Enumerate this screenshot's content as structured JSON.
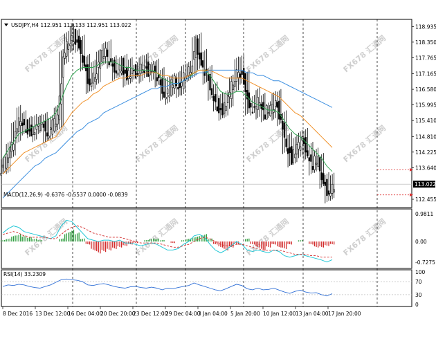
{
  "chart_data": [
    {
      "type": "candlestick",
      "title": "USDJPY,H4 112.951 113.133 112.951 113.022",
      "symbol": "USDJPY",
      "timeframe": "H4",
      "ohlc": {
        "open": 112.951,
        "high": 113.133,
        "low": 112.951,
        "close": 113.022
      },
      "current_price_tag": "113.022",
      "y_ticks": [
        "118.935",
        "118.350",
        "117.765",
        "117.165",
        "116.580",
        "115.995",
        "115.410",
        "114.810",
        "114.225",
        "113.640",
        "113.022",
        "112.455"
      ],
      "ylim": [
        112.3,
        119.1
      ],
      "x_ticks": [
        "8 Dec 2016",
        "13 Dec 12:00",
        "16 Dec 04:00",
        "20 Dec 20:00",
        "23 Dec 12:00",
        "29 Dec 04:00",
        "3 Jan 04:00",
        "5 Jan 20:00",
        "10 Jan 12:00",
        "13 Jan 04:00",
        "17 Jan 20:00"
      ],
      "close_path": [
        113.8,
        114.3,
        115.0,
        115.5,
        115.2,
        115.0,
        115.2,
        115.4,
        115.0,
        115.2,
        115.5,
        117.8,
        118.4,
        118.6,
        118.3,
        117.5,
        116.8,
        117.2,
        117.8,
        118.0,
        117.6,
        117.3,
        117.5,
        117.1,
        117.3,
        117.2,
        117.5,
        117.3,
        117.4,
        117.0,
        116.4,
        116.6,
        116.9,
        116.7,
        117.1,
        117.4,
        118.3,
        117.6,
        117.2,
        116.5,
        116.0,
        115.8,
        116.3,
        116.8,
        117.4,
        117.0,
        116.0,
        115.9,
        116.2,
        115.7,
        115.8,
        116.1,
        115.5,
        114.6,
        114.0,
        114.4,
        114.8,
        114.2,
        113.8,
        113.9,
        113.1,
        112.7,
        113.0
      ],
      "moving_averages": [
        {
          "color": "#2ea44f",
          "values": [
            114.0,
            114.3,
            114.6,
            114.9,
            115.0,
            115.1,
            115.2,
            115.3,
            115.4,
            115.5,
            115.7,
            116.2,
            116.7,
            117.1,
            117.3,
            117.4,
            117.4,
            117.4,
            117.5,
            117.6,
            117.6,
            117.6,
            117.5,
            117.4,
            117.4,
            117.3,
            117.3,
            117.3,
            117.3,
            117.2,
            117.0,
            116.9,
            116.8,
            116.8,
            116.9,
            117.0,
            117.2,
            117.3,
            117.3,
            117.1,
            116.8,
            116.5,
            116.4,
            116.4,
            116.5,
            116.5,
            116.3,
            116.1,
            116.0,
            115.9,
            115.8,
            115.8,
            115.7,
            115.4,
            115.1,
            114.9,
            114.8,
            114.6,
            114.4,
            114.2,
            114.0,
            113.7,
            113.5
          ]
        },
        {
          "color": "#f0922b",
          "values": [
            113.4,
            113.6,
            113.8,
            114.0,
            114.2,
            114.3,
            114.4,
            114.5,
            114.6,
            114.7,
            114.8,
            115.1,
            115.4,
            115.7,
            115.9,
            116.1,
            116.2,
            116.4,
            116.5,
            116.7,
            116.8,
            116.9,
            117.0,
            117.0,
            117.1,
            117.1,
            117.1,
            117.2,
            117.2,
            117.2,
            117.1,
            117.1,
            117.0,
            117.0,
            117.0,
            117.1,
            117.2,
            117.3,
            117.3,
            117.3,
            117.2,
            117.1,
            117.0,
            117.0,
            117.0,
            117.0,
            116.9,
            116.8,
            116.7,
            116.6,
            116.5,
            116.4,
            116.3,
            116.1,
            115.9,
            115.7,
            115.6,
            115.4,
            115.2,
            115.0,
            114.8,
            114.6,
            114.4
          ]
        },
        {
          "color": "#3c8fe0",
          "values": [
            112.5,
            112.7,
            112.9,
            113.1,
            113.3,
            113.5,
            113.7,
            113.8,
            114.0,
            114.1,
            114.2,
            114.4,
            114.6,
            114.8,
            115.0,
            115.1,
            115.3,
            115.4,
            115.5,
            115.7,
            115.8,
            115.9,
            116.0,
            116.1,
            116.2,
            116.3,
            116.4,
            116.5,
            116.6,
            116.6,
            116.7,
            116.7,
            116.8,
            116.8,
            116.9,
            117.0,
            117.1,
            117.2,
            117.2,
            117.3,
            117.3,
            117.3,
            117.3,
            117.3,
            117.3,
            117.3,
            117.2,
            117.2,
            117.1,
            117.1,
            117.0,
            116.9,
            116.9,
            116.8,
            116.7,
            116.6,
            116.5,
            116.4,
            116.3,
            116.2,
            116.1,
            116.0,
            115.9
          ]
        }
      ],
      "watermark": "FX678 汇通网"
    },
    {
      "type": "histogram",
      "title": "MACD(12,26,9) -0.6376 -0.5537 0.0000 -0.0839",
      "y_ticks": [
        "0.9811",
        "0.00",
        "-0.7275"
      ],
      "ylim": [
        -0.85,
        1.05
      ],
      "histogram": [
        0.05,
        0.1,
        0.2,
        0.25,
        0.2,
        0.15,
        0.1,
        0.05,
        0.0,
        0.0,
        0.0,
        0.1,
        0.3,
        0.4,
        0.3,
        0.1,
        -0.1,
        -0.3,
        -0.4,
        -0.35,
        -0.3,
        -0.25,
        -0.2,
        -0.15,
        -0.1,
        -0.05,
        0.0,
        0.05,
        0.1,
        0.1,
        0.05,
        0.0,
        -0.05,
        0.0,
        0.05,
        0.1,
        0.15,
        0.2,
        0.25,
        0.1,
        -0.1,
        -0.2,
        -0.3,
        -0.2,
        -0.1,
        0.0,
        0.1,
        -0.1,
        -0.2,
        -0.3,
        -0.2,
        -0.1,
        -0.2,
        -0.25,
        -0.1,
        0.0,
        0.05,
        0.0,
        -0.1,
        -0.2,
        -0.2,
        -0.15,
        -0.1
      ],
      "macd_line": [
        0.3,
        0.45,
        0.55,
        0.5,
        0.35,
        0.3,
        0.25,
        0.2,
        0.15,
        0.1,
        0.2,
        0.55,
        0.75,
        0.7,
        0.5,
        0.3,
        0.1,
        0.05,
        0.0,
        0.05,
        0.05,
        0.0,
        0.05,
        -0.05,
        -0.05,
        -0.1,
        -0.15,
        -0.1,
        -0.05,
        -0.1,
        -0.2,
        -0.3,
        -0.3,
        -0.25,
        -0.1,
        0.0,
        0.2,
        0.25,
        0.15,
        -0.1,
        -0.3,
        -0.4,
        -0.3,
        -0.15,
        0.0,
        -0.1,
        -0.3,
        -0.35,
        -0.3,
        -0.35,
        -0.4,
        -0.3,
        -0.35,
        -0.5,
        -0.55,
        -0.5,
        -0.45,
        -0.5,
        -0.55,
        -0.6,
        -0.65,
        -0.72,
        -0.64
      ],
      "signal_line": [
        0.25,
        0.3,
        0.35,
        0.3,
        0.2,
        0.15,
        0.15,
        0.15,
        0.15,
        0.1,
        0.1,
        0.25,
        0.4,
        0.5,
        0.55,
        0.5,
        0.4,
        0.3,
        0.25,
        0.2,
        0.15,
        0.15,
        0.15,
        0.1,
        0.05,
        0.0,
        -0.05,
        -0.05,
        -0.05,
        -0.05,
        -0.1,
        -0.15,
        -0.2,
        -0.2,
        -0.15,
        -0.1,
        0.0,
        0.1,
        0.15,
        0.1,
        0.0,
        -0.1,
        -0.15,
        -0.15,
        -0.1,
        -0.1,
        -0.15,
        -0.2,
        -0.25,
        -0.3,
        -0.3,
        -0.3,
        -0.3,
        -0.35,
        -0.4,
        -0.45,
        -0.45,
        -0.45,
        -0.5,
        -0.5,
        -0.55,
        -0.55,
        -0.55
      ]
    },
    {
      "type": "line",
      "title": "RSI(14) 33.2309",
      "y_ticks": [
        "100",
        "70",
        "30",
        "0"
      ],
      "ylim": [
        0,
        100
      ],
      "values": [
        55,
        60,
        58,
        62,
        60,
        55,
        52,
        50,
        55,
        60,
        68,
        76,
        78,
        76,
        74,
        70,
        60,
        58,
        62,
        64,
        60,
        55,
        52,
        50,
        54,
        55,
        52,
        50,
        53,
        50,
        45,
        50,
        48,
        52,
        55,
        58,
        66,
        60,
        55,
        50,
        45,
        42,
        48,
        55,
        62,
        58,
        48,
        45,
        50,
        45,
        46,
        50,
        44,
        38,
        34,
        40,
        44,
        38,
        35,
        36,
        30,
        26,
        33
      ]
    }
  ]
}
